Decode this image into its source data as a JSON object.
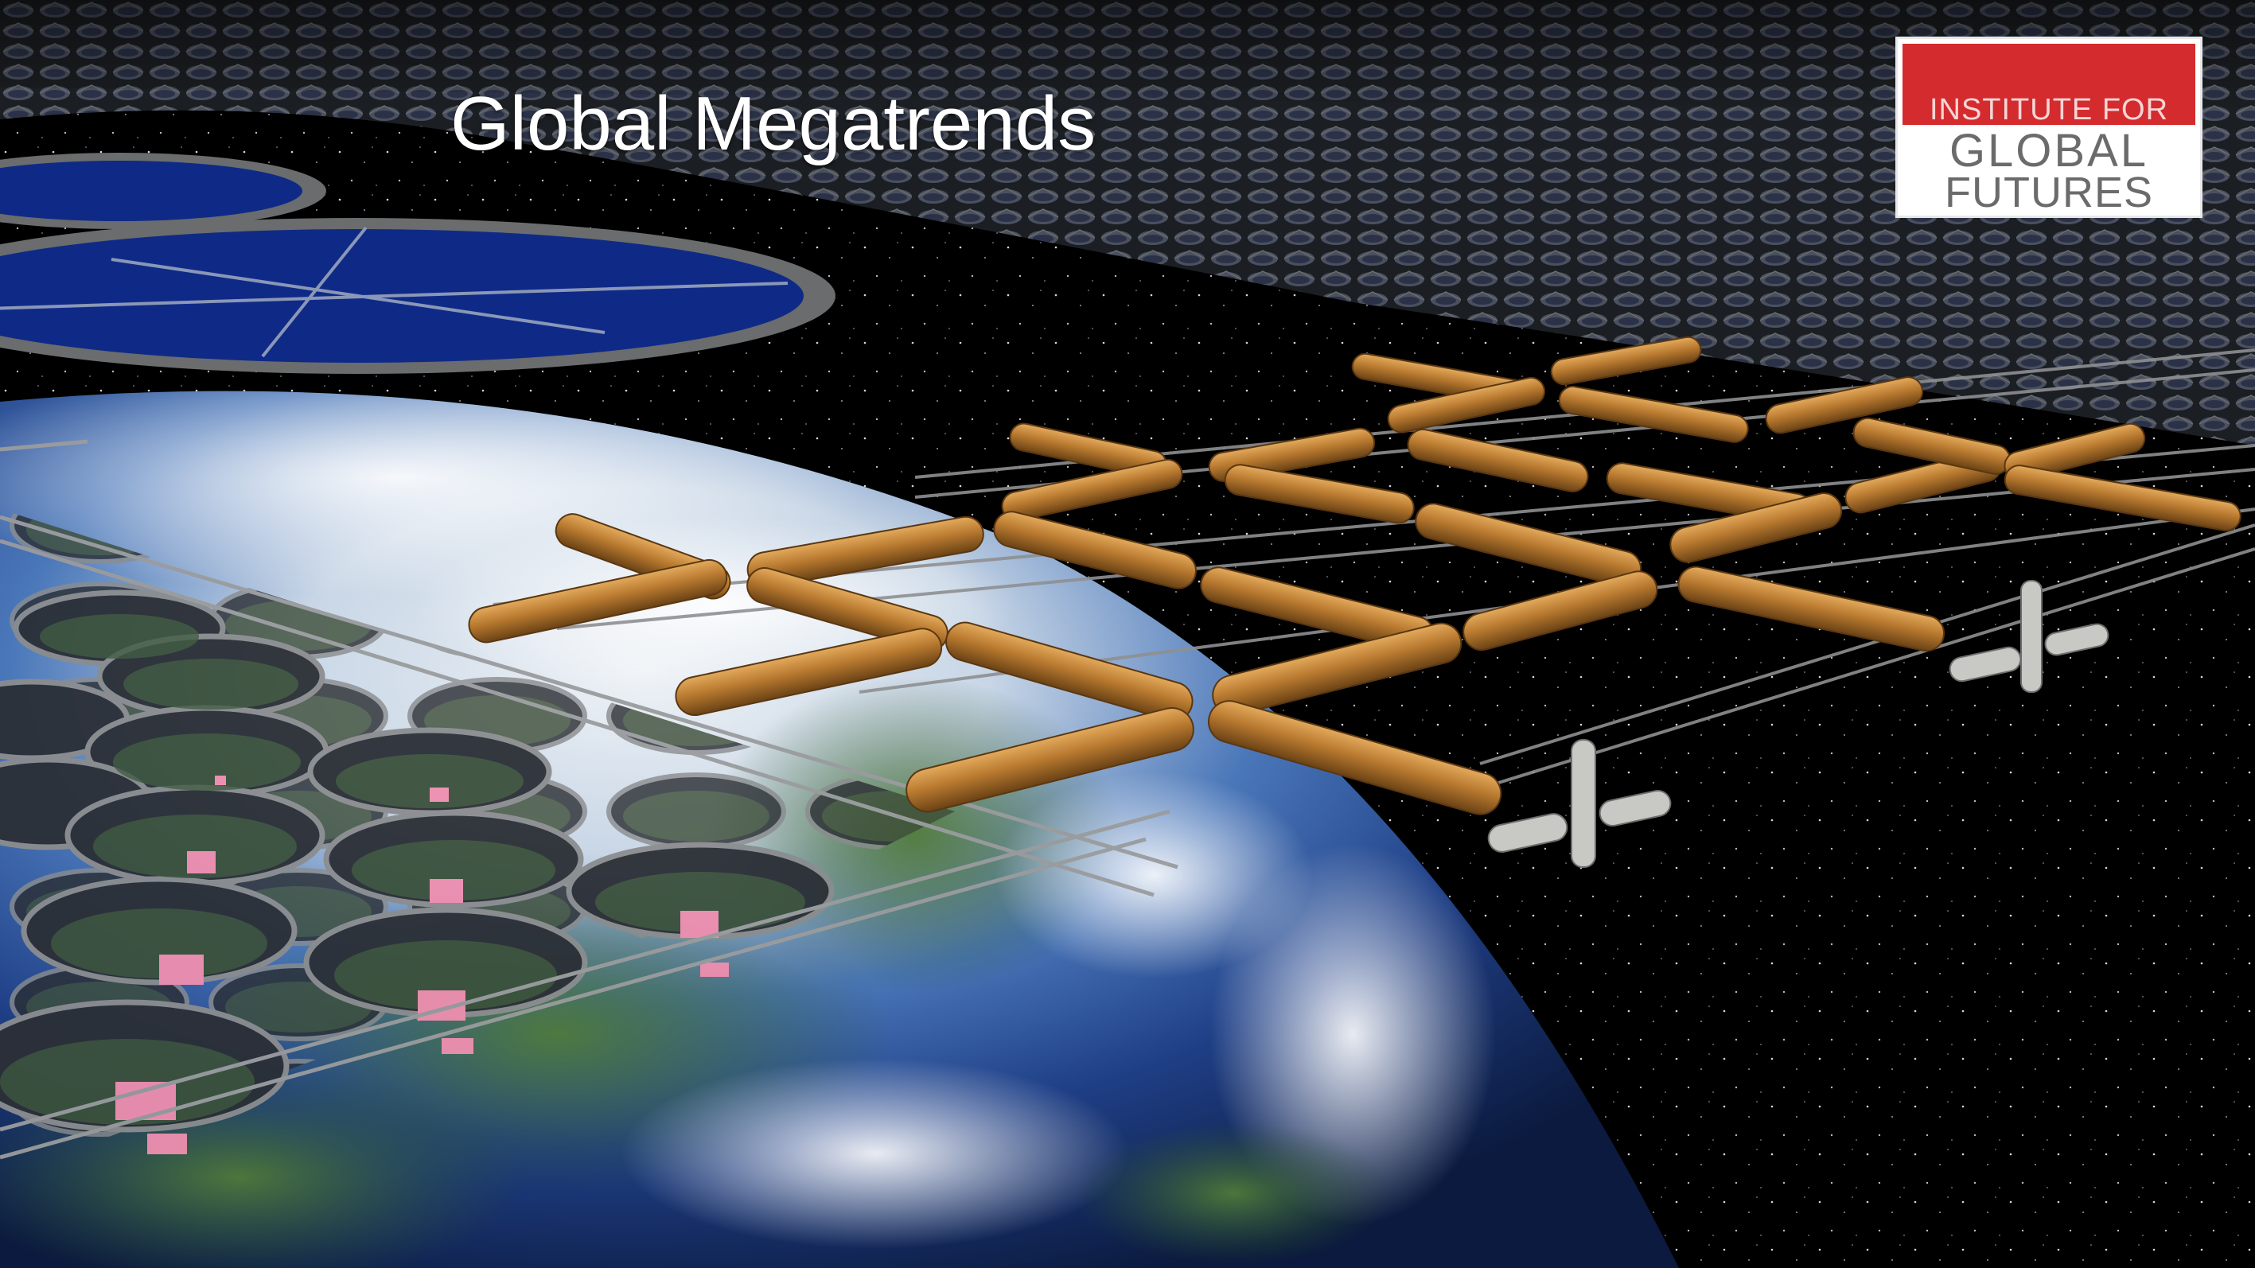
{
  "slide": {
    "title": "Global Megatrends"
  },
  "logo": {
    "line1": "INSTITUTE FOR",
    "line2": "GLOBAL",
    "line3": "FUTURES",
    "band_color": "#d42b2e",
    "text_color": "#6b6b6b"
  },
  "colors": {
    "space": "#000000",
    "ocean": "#1a3f8f",
    "pool": "#102c86",
    "cylinder": "#b5782e",
    "habitat_pink": "#ef8fb0"
  }
}
